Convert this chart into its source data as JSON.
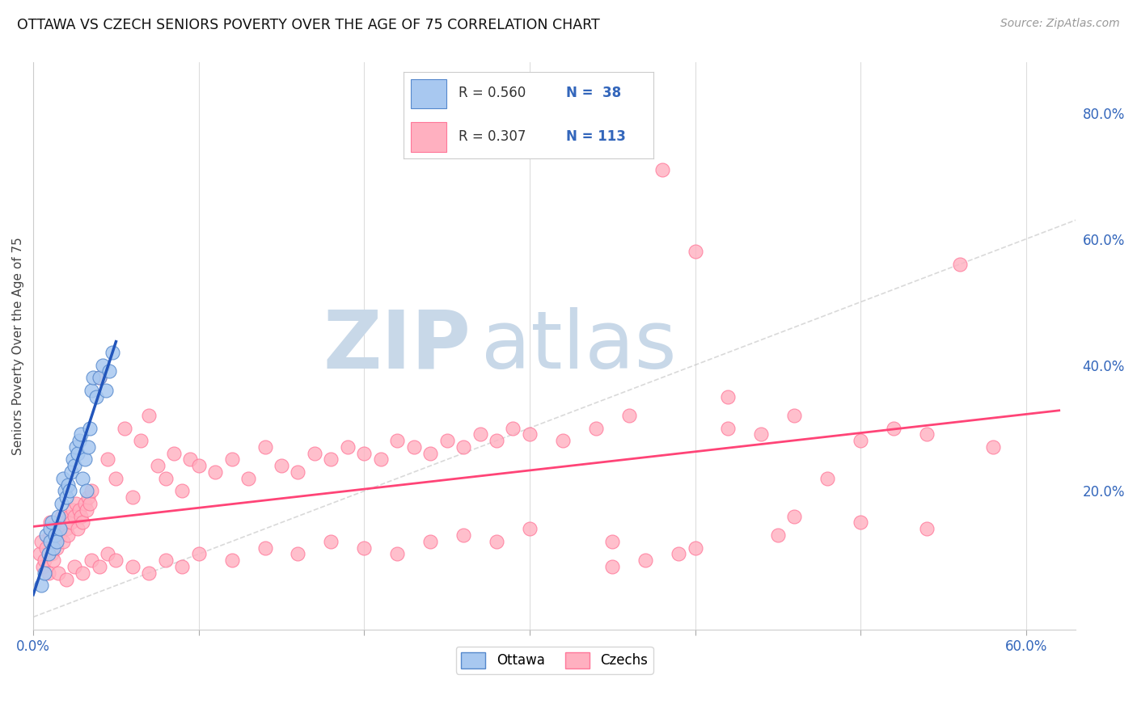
{
  "title": "OTTAWA VS CZECH SENIORS POVERTY OVER THE AGE OF 75 CORRELATION CHART",
  "source": "Source: ZipAtlas.com",
  "ylabel": "Seniors Poverty Over the Age of 75",
  "xlim": [
    0.0,
    0.63
  ],
  "ylim": [
    -0.02,
    0.88
  ],
  "ottawa_color": "#A8C8F0",
  "czech_color": "#FFB0C0",
  "ottawa_edge": "#5588CC",
  "czech_edge": "#FF7799",
  "trend_ottawa_color": "#2255BB",
  "trend_czech_color": "#FF4477",
  "diagonal_color": "#BBBBBB",
  "watermark_zip": "ZIP",
  "watermark_atlas": "atlas",
  "watermark_color": "#C8D8E8",
  "ottawa_x": [
    0.005,
    0.007,
    0.008,
    0.009,
    0.01,
    0.01,
    0.011,
    0.012,
    0.013,
    0.014,
    0.015,
    0.016,
    0.017,
    0.018,
    0.019,
    0.02,
    0.021,
    0.022,
    0.023,
    0.024,
    0.025,
    0.026,
    0.027,
    0.028,
    0.029,
    0.03,
    0.031,
    0.032,
    0.033,
    0.034,
    0.035,
    0.036,
    0.038,
    0.04,
    0.042,
    0.044,
    0.046,
    0.048
  ],
  "ottawa_y": [
    0.05,
    0.07,
    0.13,
    0.1,
    0.12,
    0.14,
    0.15,
    0.11,
    0.13,
    0.12,
    0.16,
    0.14,
    0.18,
    0.22,
    0.2,
    0.19,
    0.21,
    0.2,
    0.23,
    0.25,
    0.24,
    0.27,
    0.26,
    0.28,
    0.29,
    0.22,
    0.25,
    0.2,
    0.27,
    0.3,
    0.36,
    0.38,
    0.35,
    0.38,
    0.4,
    0.36,
    0.39,
    0.42
  ],
  "czech_x": [
    0.004,
    0.005,
    0.006,
    0.007,
    0.008,
    0.009,
    0.01,
    0.01,
    0.011,
    0.012,
    0.013,
    0.014,
    0.015,
    0.016,
    0.017,
    0.018,
    0.019,
    0.02,
    0.021,
    0.022,
    0.023,
    0.024,
    0.025,
    0.026,
    0.027,
    0.028,
    0.029,
    0.03,
    0.031,
    0.032,
    0.033,
    0.034,
    0.035,
    0.04,
    0.045,
    0.05,
    0.055,
    0.06,
    0.065,
    0.07,
    0.075,
    0.08,
    0.085,
    0.09,
    0.095,
    0.1,
    0.11,
    0.12,
    0.13,
    0.14,
    0.15,
    0.16,
    0.17,
    0.18,
    0.19,
    0.2,
    0.21,
    0.22,
    0.23,
    0.24,
    0.25,
    0.26,
    0.27,
    0.28,
    0.29,
    0.3,
    0.32,
    0.34,
    0.36,
    0.38,
    0.4,
    0.42,
    0.44,
    0.46,
    0.48,
    0.5,
    0.52,
    0.54,
    0.56,
    0.58,
    0.015,
    0.02,
    0.025,
    0.03,
    0.035,
    0.04,
    0.045,
    0.05,
    0.06,
    0.07,
    0.08,
    0.09,
    0.1,
    0.12,
    0.14,
    0.16,
    0.18,
    0.2,
    0.22,
    0.24,
    0.26,
    0.28,
    0.3,
    0.35,
    0.4,
    0.45,
    0.5,
    0.54,
    0.42,
    0.46,
    0.35,
    0.37,
    0.39
  ],
  "czech_y": [
    0.1,
    0.12,
    0.08,
    0.09,
    0.11,
    0.07,
    0.13,
    0.15,
    0.1,
    0.09,
    0.12,
    0.11,
    0.14,
    0.13,
    0.16,
    0.12,
    0.15,
    0.14,
    0.13,
    0.16,
    0.15,
    0.17,
    0.16,
    0.18,
    0.14,
    0.17,
    0.16,
    0.15,
    0.18,
    0.17,
    0.19,
    0.18,
    0.2,
    0.38,
    0.25,
    0.22,
    0.3,
    0.19,
    0.28,
    0.32,
    0.24,
    0.22,
    0.26,
    0.2,
    0.25,
    0.24,
    0.23,
    0.25,
    0.22,
    0.27,
    0.24,
    0.23,
    0.26,
    0.25,
    0.27,
    0.26,
    0.25,
    0.28,
    0.27,
    0.26,
    0.28,
    0.27,
    0.29,
    0.28,
    0.3,
    0.29,
    0.28,
    0.3,
    0.32,
    0.71,
    0.58,
    0.3,
    0.29,
    0.32,
    0.22,
    0.28,
    0.3,
    0.29,
    0.56,
    0.27,
    0.07,
    0.06,
    0.08,
    0.07,
    0.09,
    0.08,
    0.1,
    0.09,
    0.08,
    0.07,
    0.09,
    0.08,
    0.1,
    0.09,
    0.11,
    0.1,
    0.12,
    0.11,
    0.1,
    0.12,
    0.13,
    0.12,
    0.14,
    0.12,
    0.11,
    0.13,
    0.15,
    0.14,
    0.35,
    0.16,
    0.08,
    0.09,
    0.1
  ]
}
